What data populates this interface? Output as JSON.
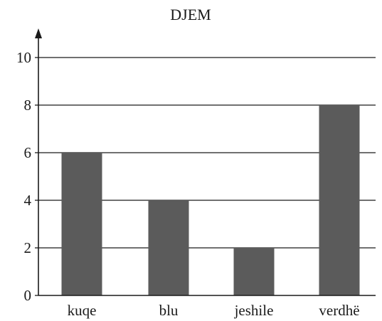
{
  "chart_data": {
    "type": "bar",
    "title": "DJEM",
    "categories": [
      "kuqe",
      "blu",
      "jeshile",
      "verdhë"
    ],
    "values": [
      6,
      4,
      2,
      8
    ],
    "ylim": [
      0,
      10
    ],
    "yticks": [
      0,
      2,
      4,
      6,
      8,
      10
    ],
    "xlabel": "",
    "ylabel": "",
    "grid": true,
    "colors": {
      "bar": "#5b5b5b",
      "axis": "#1a1a1a",
      "grid": "#1a1a1a"
    }
  }
}
